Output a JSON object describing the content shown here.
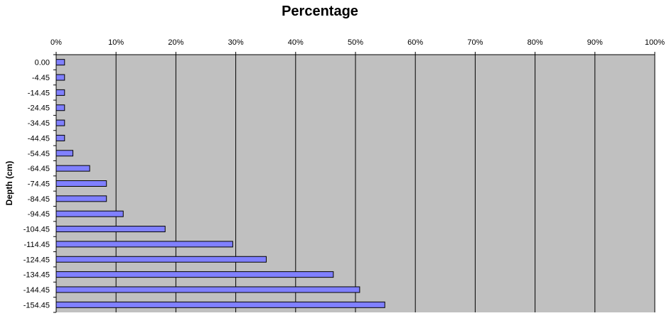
{
  "chart_data": {
    "type": "bar",
    "orientation": "horizontal",
    "title": "Percentage",
    "xlabel": "",
    "ylabel": "Depth (cm)",
    "xlim": [
      0,
      100
    ],
    "x_tick_labels": [
      "0%",
      "10%",
      "20%",
      "30%",
      "40%",
      "50%",
      "60%",
      "70%",
      "80%",
      "90%",
      "100%"
    ],
    "x_axis_position": "top",
    "grid": "vertical",
    "legend": "none",
    "categories": [
      "0.00",
      "-4.45",
      "-14.45",
      "-24.45",
      "-34.45",
      "-44.45",
      "-54.45",
      "-64.45",
      "-74.45",
      "-84.45",
      "-94.45",
      "-104.45",
      "-114.45",
      "-124.45",
      "-134.45",
      "-144.45",
      "-154.45"
    ],
    "values": [
      1.4,
      1.4,
      1.4,
      1.4,
      1.4,
      1.4,
      2.8,
      5.6,
      8.4,
      8.4,
      11.2,
      18.2,
      29.5,
      35.1,
      46.3,
      50.7,
      54.9
    ],
    "colors": {
      "bar_fill": "#8080ff",
      "bar_stroke": "#000000",
      "plot_background": "#c0c0c0",
      "gridline": "#000000"
    }
  }
}
